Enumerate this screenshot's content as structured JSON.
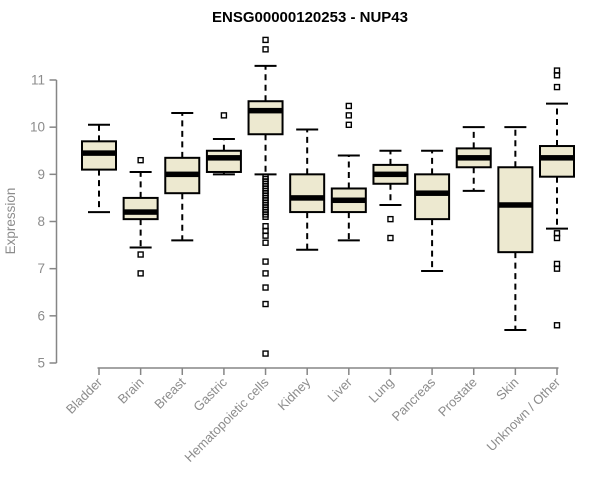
{
  "chart_data": {
    "type": "boxplot",
    "title": "ENSG00000120253 - NUP43",
    "ylabel": "Expression",
    "xlabel": "",
    "ylim": [
      5,
      11
    ],
    "y_ticks": [
      5,
      6,
      7,
      8,
      9,
      10,
      11
    ],
    "grid": "off",
    "legend": "none",
    "categories": [
      "Bladder",
      "Brain",
      "Breast",
      "Gastric",
      "Hematopoietic cells",
      "Kidney",
      "Liver",
      "Lung",
      "Pancreas",
      "Prostate",
      "Skin",
      "Unknown / Other"
    ],
    "series": [
      {
        "name": "Bladder",
        "whisker_low": 8.2,
        "q1": 9.1,
        "median": 9.45,
        "q3": 9.7,
        "whisker_high": 10.05,
        "outliers": []
      },
      {
        "name": "Brain",
        "whisker_low": 7.45,
        "q1": 8.05,
        "median": 8.2,
        "q3": 8.5,
        "whisker_high": 9.05,
        "outliers": [
          9.3,
          7.3,
          6.9
        ]
      },
      {
        "name": "Breast",
        "whisker_low": 7.6,
        "q1": 8.6,
        "median": 9.0,
        "q3": 9.35,
        "whisker_high": 10.3,
        "outliers": []
      },
      {
        "name": "Gastric",
        "whisker_low": 9.0,
        "q1": 9.05,
        "median": 9.35,
        "q3": 9.5,
        "whisker_high": 9.75,
        "outliers": [
          10.25
        ]
      },
      {
        "name": "Hematopoietic cells",
        "whisker_low": 9.0,
        "q1": 9.85,
        "median": 10.35,
        "q3": 10.55,
        "whisker_high": 11.3,
        "outliers": [
          11.85,
          11.65,
          8.95,
          8.9,
          8.85,
          8.8,
          8.75,
          8.7,
          8.65,
          8.6,
          8.55,
          8.5,
          8.45,
          8.4,
          8.35,
          8.3,
          8.25,
          8.2,
          8.15,
          8.1,
          7.9,
          7.8,
          7.7,
          7.55,
          7.15,
          6.9,
          6.6,
          6.25,
          5.2
        ]
      },
      {
        "name": "Kidney",
        "whisker_low": 7.4,
        "q1": 8.2,
        "median": 8.5,
        "q3": 9.0,
        "whisker_high": 9.95,
        "outliers": []
      },
      {
        "name": "Liver",
        "whisker_low": 7.6,
        "q1": 8.2,
        "median": 8.45,
        "q3": 8.7,
        "whisker_high": 9.4,
        "outliers": [
          10.45,
          10.25,
          10.05
        ]
      },
      {
        "name": "Lung",
        "whisker_low": 8.35,
        "q1": 8.8,
        "median": 9.0,
        "q3": 9.2,
        "whisker_high": 9.5,
        "outliers": [
          8.05,
          7.65
        ]
      },
      {
        "name": "Pancreas",
        "whisker_low": 6.95,
        "q1": 8.05,
        "median": 8.6,
        "q3": 9.0,
        "whisker_high": 9.5,
        "outliers": []
      },
      {
        "name": "Prostate",
        "whisker_low": 8.65,
        "q1": 9.15,
        "median": 9.35,
        "q3": 9.55,
        "whisker_high": 10.0,
        "outliers": []
      },
      {
        "name": "Skin",
        "whisker_low": 5.7,
        "q1": 7.35,
        "median": 8.35,
        "q3": 9.15,
        "whisker_high": 10.0,
        "outliers": []
      },
      {
        "name": "Unknown / Other",
        "whisker_low": 7.85,
        "q1": 8.95,
        "median": 9.35,
        "q3": 9.6,
        "whisker_high": 10.5,
        "outliers": [
          11.2,
          11.1,
          10.85,
          7.75,
          7.65,
          7.1,
          7.0,
          5.8
        ]
      }
    ],
    "colors": {
      "box_fill": "#ede9d0",
      "box_border": "#000000",
      "median": "#000000",
      "whisker": "#000000",
      "outlier": "#000000",
      "axis_line": "#868686",
      "axis_text": "#8c8c8c",
      "title_text": "#000000",
      "background": "#ffffff"
    }
  }
}
